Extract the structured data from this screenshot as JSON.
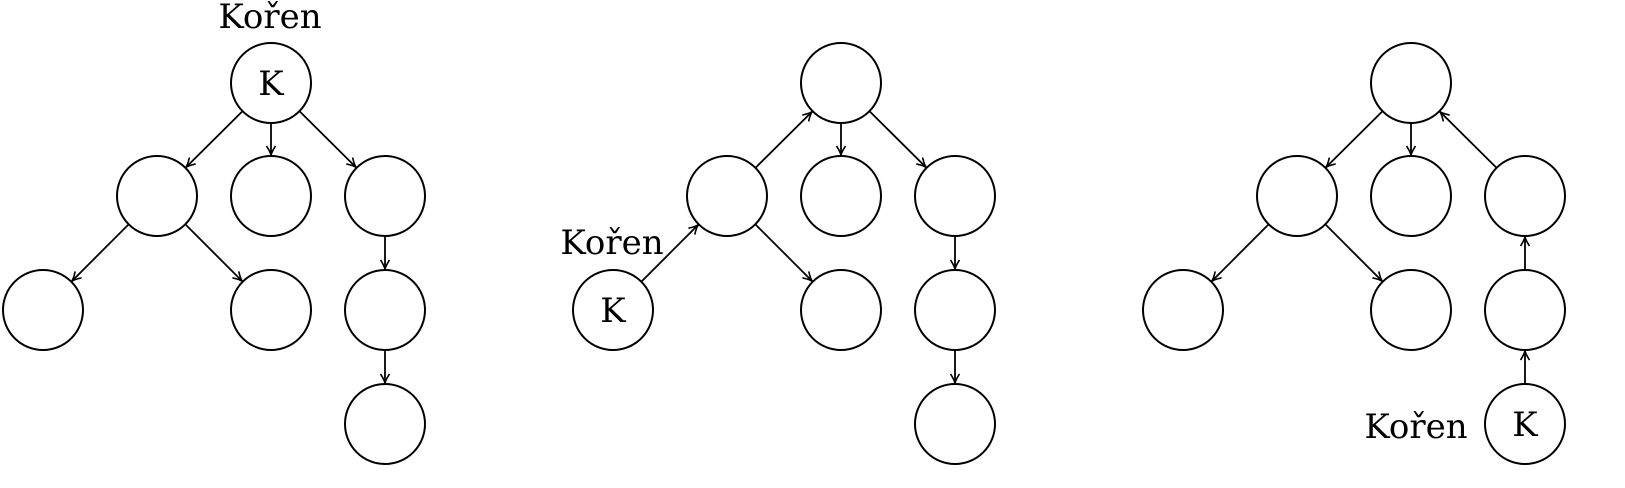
{
  "colors": {
    "stroke": "#000000",
    "background": "#ffffff"
  },
  "diagrams": [
    {
      "id": "tree-1",
      "root_caption": "Kořen",
      "nodes": [
        {
          "id": "a",
          "label": "K"
        },
        {
          "id": "b",
          "label": ""
        },
        {
          "id": "c",
          "label": ""
        },
        {
          "id": "d",
          "label": ""
        },
        {
          "id": "e",
          "label": ""
        },
        {
          "id": "f",
          "label": ""
        },
        {
          "id": "g",
          "label": ""
        },
        {
          "id": "h",
          "label": ""
        }
      ],
      "edges": [
        {
          "from": "a",
          "to": "b"
        },
        {
          "from": "a",
          "to": "c"
        },
        {
          "from": "a",
          "to": "d"
        },
        {
          "from": "b",
          "to": "e"
        },
        {
          "from": "b",
          "to": "f"
        },
        {
          "from": "d",
          "to": "g"
        },
        {
          "from": "g",
          "to": "h"
        }
      ]
    },
    {
      "id": "tree-2",
      "root_caption": "Kořen",
      "nodes": [
        {
          "id": "a",
          "label": ""
        },
        {
          "id": "b",
          "label": ""
        },
        {
          "id": "c",
          "label": ""
        },
        {
          "id": "d",
          "label": ""
        },
        {
          "id": "e",
          "label": "K"
        },
        {
          "id": "f",
          "label": ""
        },
        {
          "id": "g",
          "label": ""
        },
        {
          "id": "h",
          "label": ""
        }
      ],
      "edges": [
        {
          "from": "e",
          "to": "b"
        },
        {
          "from": "b",
          "to": "a"
        },
        {
          "from": "a",
          "to": "c"
        },
        {
          "from": "a",
          "to": "d"
        },
        {
          "from": "b",
          "to": "f"
        },
        {
          "from": "d",
          "to": "g"
        },
        {
          "from": "g",
          "to": "h"
        }
      ]
    },
    {
      "id": "tree-3",
      "root_caption": "Kořen",
      "nodes": [
        {
          "id": "a",
          "label": ""
        },
        {
          "id": "b",
          "label": ""
        },
        {
          "id": "c",
          "label": ""
        },
        {
          "id": "d",
          "label": ""
        },
        {
          "id": "e",
          "label": ""
        },
        {
          "id": "f",
          "label": ""
        },
        {
          "id": "g",
          "label": ""
        },
        {
          "id": "h",
          "label": "K"
        }
      ],
      "edges": [
        {
          "from": "h",
          "to": "g"
        },
        {
          "from": "g",
          "to": "d"
        },
        {
          "from": "d",
          "to": "a"
        },
        {
          "from": "a",
          "to": "b"
        },
        {
          "from": "a",
          "to": "c"
        },
        {
          "from": "b",
          "to": "e"
        },
        {
          "from": "b",
          "to": "f"
        }
      ]
    }
  ]
}
